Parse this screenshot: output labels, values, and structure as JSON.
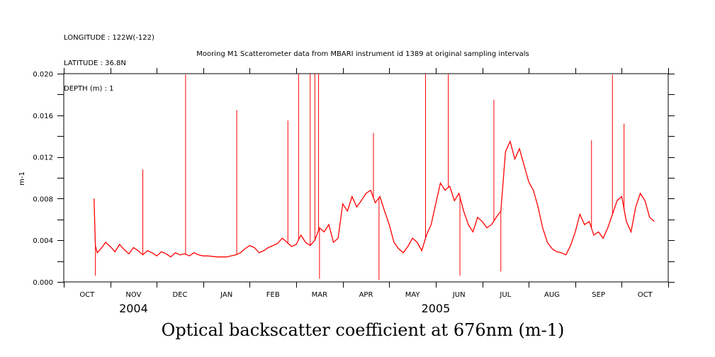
{
  "header": {
    "longitude": "LONGITUDE : 122W(-122)",
    "latitude": "LATITUDE : 36.8N",
    "depth": "DEPTH (m) : 1"
  },
  "chart_data": {
    "type": "line",
    "title": "Mooring M1 Scatterometer data from MBARI instrument id 1389 at original sampling intervals",
    "xlabel": "Optical backscatter coefficient at 676nm (m-1)",
    "ylabel": "m-1",
    "ylim": [
      0,
      0.02
    ],
    "ytick_labels": [
      "0.000",
      "0.004",
      "0.008",
      "0.012",
      "0.016",
      "0.020"
    ],
    "ytick_values": [
      0,
      0.004,
      0.008,
      0.012,
      0.016,
      0.02
    ],
    "x_month_labels": [
      "OCT",
      "NOV",
      "DEC",
      "JAN",
      "FEB",
      "MAR",
      "APR",
      "MAY",
      "JUN",
      "JUL",
      "AUG",
      "SEP",
      "OCT"
    ],
    "x_month_positions": [
      0.5,
      1.5,
      2.5,
      3.5,
      4.5,
      5.5,
      6.5,
      7.5,
      8.5,
      9.5,
      10.5,
      11.5,
      12.5
    ],
    "year_labels": [
      {
        "text": "2004",
        "x": 1.5
      },
      {
        "text": "2005",
        "x": 8
      }
    ],
    "xlim": [
      0,
      13
    ],
    "series_color": "#ff0000",
    "series": [
      {
        "x": [
          0.65,
          0.68,
          0.72,
          0.8,
          0.9,
          1.0,
          1.1,
          1.2,
          1.3,
          1.4,
          1.5,
          1.6,
          1.7,
          1.8,
          1.9,
          2.0,
          2.1,
          2.2,
          2.3,
          2.4,
          2.5,
          2.6,
          2.7,
          2.8,
          2.9,
          3.0,
          3.1,
          3.3,
          3.5,
          3.6,
          3.7,
          3.8,
          3.9,
          4.0,
          4.1,
          4.2,
          4.3,
          4.4,
          4.5,
          4.6,
          4.7,
          4.8,
          4.9,
          5.0,
          5.1,
          5.2,
          5.3,
          5.4,
          5.5,
          5.6,
          5.7,
          5.8,
          5.9,
          6.0,
          6.1,
          6.2,
          6.3,
          6.4,
          6.5,
          6.6,
          6.7,
          6.8,
          6.9,
          7.0,
          7.1,
          7.2,
          7.3,
          7.4,
          7.5,
          7.6,
          7.7,
          7.8,
          7.9,
          8.0,
          8.1,
          8.2,
          8.3,
          8.4,
          8.5,
          8.6,
          8.7,
          8.8,
          8.9,
          9.0,
          9.1,
          9.2,
          9.3,
          9.4,
          9.5,
          9.6,
          9.7,
          9.8,
          9.9,
          10.0,
          10.1,
          10.2,
          10.3,
          10.4,
          10.5,
          10.6,
          10.7,
          10.8,
          10.9,
          11.0,
          11.1,
          11.2,
          11.3,
          11.4,
          11.5,
          11.6,
          11.7,
          11.8,
          11.9,
          12.0,
          12.1,
          12.2,
          12.3,
          12.4,
          12.5,
          12.6,
          12.7
        ],
        "y": [
          0.008,
          0.0035,
          0.0028,
          0.0032,
          0.0038,
          0.0034,
          0.0029,
          0.0036,
          0.0031,
          0.0027,
          0.0033,
          0.003,
          0.0026,
          0.003,
          0.0028,
          0.0025,
          0.0029,
          0.0027,
          0.0024,
          0.0028,
          0.0026,
          0.0027,
          0.0025,
          0.0028,
          0.0026,
          0.0025,
          0.0025,
          0.0024,
          0.0024,
          0.0025,
          0.0026,
          0.0028,
          0.0032,
          0.0035,
          0.0033,
          0.0028,
          0.003,
          0.0033,
          0.0035,
          0.0037,
          0.0042,
          0.0038,
          0.0034,
          0.0036,
          0.0045,
          0.0038,
          0.0035,
          0.004,
          0.0052,
          0.0048,
          0.0055,
          0.0038,
          0.0042,
          0.0075,
          0.0068,
          0.0082,
          0.0072,
          0.0078,
          0.0085,
          0.0088,
          0.0076,
          0.0082,
          0.0068,
          0.0055,
          0.0038,
          0.0032,
          0.0028,
          0.0034,
          0.0042,
          0.0038,
          0.003,
          0.0045,
          0.0055,
          0.0075,
          0.0095,
          0.0088,
          0.0092,
          0.0078,
          0.0085,
          0.0068,
          0.0055,
          0.0048,
          0.0062,
          0.0058,
          0.0052,
          0.0055,
          0.0062,
          0.0068,
          0.0125,
          0.0135,
          0.0118,
          0.0128,
          0.0112,
          0.0096,
          0.0088,
          0.0072,
          0.0052,
          0.0038,
          0.0032,
          0.0029,
          0.0028,
          0.0026,
          0.0035,
          0.0048,
          0.0065,
          0.0055,
          0.0058,
          0.0045,
          0.0048,
          0.0042,
          0.0052,
          0.0065,
          0.0078,
          0.0082,
          0.0058,
          0.0048,
          0.0072,
          0.0085,
          0.0078,
          0.0062,
          0.0058
        ]
      }
    ],
    "spikes": [
      {
        "x": 0.68,
        "y": 0.0006
      },
      {
        "x": 1.7,
        "y": 0.0108
      },
      {
        "x": 2.62,
        "y": 0.0199
      },
      {
        "x": 3.72,
        "y": 0.0165
      },
      {
        "x": 4.82,
        "y": 0.0155
      },
      {
        "x": 5.05,
        "y": 0.02
      },
      {
        "x": 5.3,
        "y": 0.02
      },
      {
        "x": 5.4,
        "y": 0.02
      },
      {
        "x": 5.48,
        "y": 0.02
      },
      {
        "x": 5.5,
        "y": 0.0003
      },
      {
        "x": 6.66,
        "y": 0.0143
      },
      {
        "x": 6.78,
        "y": 0.0002
      },
      {
        "x": 7.78,
        "y": 0.02
      },
      {
        "x": 8.27,
        "y": 0.02
      },
      {
        "x": 8.52,
        "y": 0.0006
      },
      {
        "x": 9.25,
        "y": 0.0175
      },
      {
        "x": 9.4,
        "y": 0.001
      },
      {
        "x": 11.35,
        "y": 0.0136
      },
      {
        "x": 11.8,
        "y": 0.0199
      },
      {
        "x": 12.05,
        "y": 0.0152
      }
    ]
  }
}
